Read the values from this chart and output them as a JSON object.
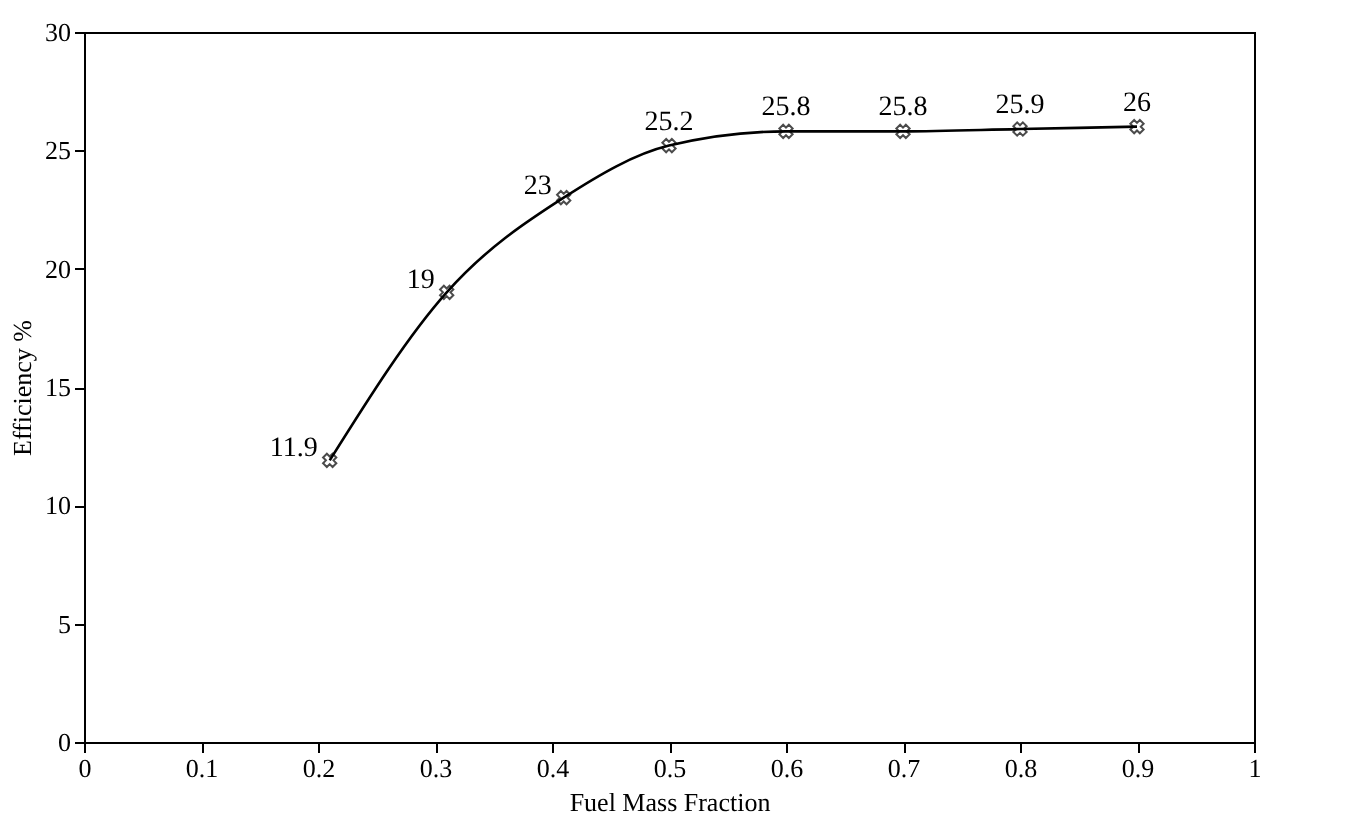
{
  "chart_data": {
    "type": "line",
    "xlabel": "Fuel Mass Fraction",
    "ylabel": "Efficiency %",
    "x": [
      0.21,
      0.31,
      0.41,
      0.5,
      0.6,
      0.7,
      0.8,
      0.9
    ],
    "series": [
      {
        "color": "#000000",
        "values": [
          11.9,
          19,
          23,
          25.2,
          25.8,
          25.8,
          25.9,
          26
        ]
      }
    ],
    "xlim": [
      0,
      1
    ],
    "xticks": [
      0,
      0.1,
      0.2,
      0.3,
      0.4,
      0.5,
      0.6,
      0.7,
      0.8,
      0.9,
      1
    ],
    "ylim": [
      0,
      30
    ],
    "yticks": [
      0,
      5,
      10,
      15,
      20,
      25,
      30
    ],
    "grid": false,
    "marker": "cross",
    "line_style": "solid",
    "data_labels": true
  }
}
